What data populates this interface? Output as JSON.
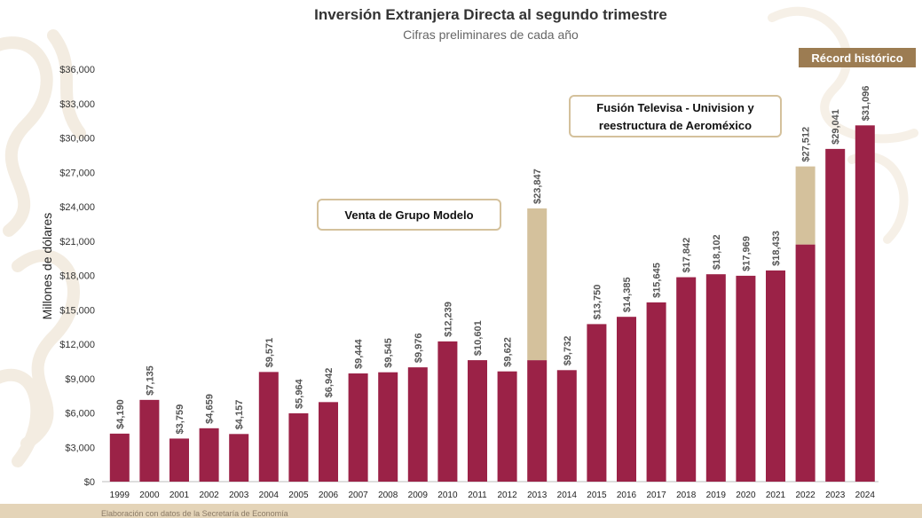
{
  "chart_data": {
    "type": "bar",
    "title": "Inversión Extranjera Directa al segundo trimestre",
    "subtitle": "Cifras preliminares de cada año",
    "ylabel": "Millones de dólares",
    "xlabel": "",
    "ylim": [
      0,
      37000
    ],
    "yticks": [
      0,
      3000,
      6000,
      9000,
      12000,
      15000,
      18000,
      21000,
      24000,
      27000,
      30000,
      33000,
      36000
    ],
    "ytick_labels": [
      "$0",
      "$3,000",
      "$6,000",
      "$9,000",
      "$12,000",
      "$15,000",
      "$18,000",
      "$21,000",
      "$24,000",
      "$27,000",
      "$30,000",
      "$33,000",
      "$36,000"
    ],
    "grid": false,
    "categories": [
      "1999",
      "2000",
      "2001",
      "2002",
      "2003",
      "2004",
      "2005",
      "2006",
      "2007",
      "2008",
      "2009",
      "2010",
      "2011",
      "2012",
      "2013",
      "2014",
      "2015",
      "2016",
      "2017",
      "2018",
      "2019",
      "2020",
      "2021",
      "2022",
      "2023",
      "2024"
    ],
    "series": [
      {
        "color": "#9b2247",
        "values": [
          4190,
          7135,
          3759,
          4659,
          4157,
          9571,
          5964,
          6942,
          9444,
          9545,
          9976,
          12239,
          10601,
          9622,
          10600,
          9732,
          13750,
          14385,
          15645,
          17842,
          18102,
          17969,
          18433,
          20700,
          29041,
          31096
        ]
      },
      {
        "color": "#d4c19c",
        "values": [
          0,
          0,
          0,
          0,
          0,
          0,
          0,
          0,
          0,
          0,
          0,
          0,
          0,
          0,
          13247,
          0,
          0,
          0,
          0,
          0,
          0,
          0,
          0,
          6812,
          0,
          0
        ]
      }
    ],
    "totals": [
      4190,
      7135,
      3759,
      4659,
      4157,
      9571,
      5964,
      6942,
      9444,
      9545,
      9976,
      12239,
      10601,
      9622,
      23847,
      9732,
      13750,
      14385,
      15645,
      17842,
      18102,
      17969,
      18433,
      27512,
      29041,
      31096
    ],
    "data_labels": [
      "$4,190",
      "$7,135",
      "$3,759",
      "$4,659",
      "$4,157",
      "$9,571",
      "$5,964",
      "$6,942",
      "$9,444",
      "$9,545",
      "$9,976",
      "$12,239",
      "$10,601",
      "$9,622",
      "$23,847",
      "$9,732",
      "$13,750",
      "$14,385",
      "$15,645",
      "$17,842",
      "$18,102",
      "$17,969",
      "$18,433",
      "$27,512",
      "$29,041",
      "$31,096"
    ],
    "annotations": [
      {
        "id": "grupo-modelo",
        "text": [
          "Venta de Grupo Modelo"
        ]
      },
      {
        "id": "televisa",
        "text": [
          "Fusión Televisa - Univision y",
          "reestructura de Aeroméxico"
        ]
      }
    ],
    "badge": {
      "text": "Récord histórico",
      "color": "#9c7c52"
    }
  },
  "footer": {
    "text": "Elaboración con datos de la Secretaría de Economía"
  }
}
